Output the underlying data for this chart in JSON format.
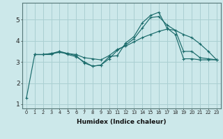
{
  "xlabel": "Humidex (Indice chaleur)",
  "ylabel": "",
  "xlim": [
    -0.5,
    23.5
  ],
  "ylim": [
    0.8,
    5.8
  ],
  "xticks": [
    0,
    1,
    2,
    3,
    4,
    5,
    6,
    7,
    8,
    9,
    10,
    11,
    12,
    13,
    14,
    15,
    16,
    17,
    18,
    19,
    20,
    21,
    22,
    23
  ],
  "yticks": [
    1,
    2,
    3,
    4,
    5
  ],
  "background_color": "#cce8ea",
  "grid_color": "#aacfd2",
  "line_color": "#1a6b6b",
  "line1_x": [
    0,
    1,
    2,
    3,
    4,
    5,
    6,
    7,
    8,
    9,
    10,
    11,
    12,
    13,
    14,
    15,
    16,
    17,
    18,
    19,
    20,
    21,
    22,
    23
  ],
  "line1_y": [
    1.3,
    3.35,
    3.35,
    3.35,
    3.5,
    3.4,
    3.3,
    2.95,
    2.8,
    2.85,
    3.25,
    3.3,
    3.9,
    4.2,
    4.85,
    5.2,
    5.35,
    4.6,
    4.3,
    3.15,
    3.15,
    3.1,
    3.1,
    3.1
  ],
  "line2_x": [
    1,
    2,
    3,
    4,
    5,
    6,
    7,
    8,
    9,
    10,
    11,
    12,
    13,
    14,
    15,
    16,
    17,
    18,
    19,
    20,
    21,
    22,
    23
  ],
  "line2_y": [
    3.35,
    3.35,
    3.4,
    3.5,
    3.35,
    3.25,
    3.0,
    2.8,
    2.85,
    3.15,
    3.55,
    3.8,
    4.1,
    4.6,
    5.1,
    5.15,
    4.75,
    4.5,
    3.5,
    3.5,
    3.2,
    3.15,
    3.1
  ],
  "line3_x": [
    1,
    2,
    3,
    4,
    5,
    6,
    7,
    8,
    9,
    10,
    11,
    12,
    13,
    14,
    15,
    16,
    17,
    18,
    19,
    20,
    21,
    22,
    23
  ],
  "line3_y": [
    3.35,
    3.35,
    3.4,
    3.45,
    3.4,
    3.35,
    3.2,
    3.15,
    3.1,
    3.3,
    3.6,
    3.75,
    3.95,
    4.15,
    4.3,
    4.45,
    4.55,
    4.5,
    4.3,
    4.15,
    3.85,
    3.5,
    3.1
  ]
}
